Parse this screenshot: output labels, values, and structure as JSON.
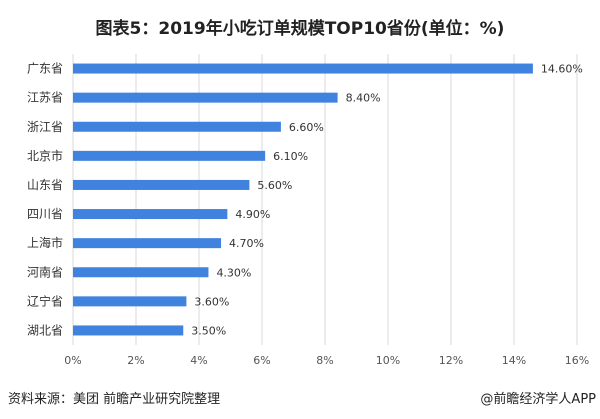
{
  "title": "图表5：2019年小吃订单规模TOP10省份(单位：%)",
  "source": "资料来源：美团 前瞻产业研究院整理",
  "credit": "@前瞻经济学人APP",
  "chart_data": {
    "type": "bar",
    "orientation": "horizontal",
    "title": "图表5：2019年小吃订单规模TOP10省份(单位：%)",
    "categories": [
      "广东省",
      "江苏省",
      "浙江省",
      "北京市",
      "山东省",
      "四川省",
      "上海市",
      "河南省",
      "辽宁省",
      "湖北省"
    ],
    "values": [
      14.6,
      8.4,
      6.6,
      6.1,
      5.6,
      4.9,
      4.7,
      4.3,
      3.6,
      3.5
    ],
    "data_labels": [
      "14.60%",
      "8.40%",
      "6.60%",
      "6.10%",
      "5.60%",
      "4.90%",
      "4.70%",
      "4.30%",
      "3.60%",
      "3.50%"
    ],
    "xlim": [
      0,
      16
    ],
    "xticks": [
      "0%",
      "2%",
      "4%",
      "6%",
      "8%",
      "10%",
      "12%",
      "14%",
      "16%"
    ],
    "grid": "vertical",
    "bar_color": "#3F83DF"
  }
}
